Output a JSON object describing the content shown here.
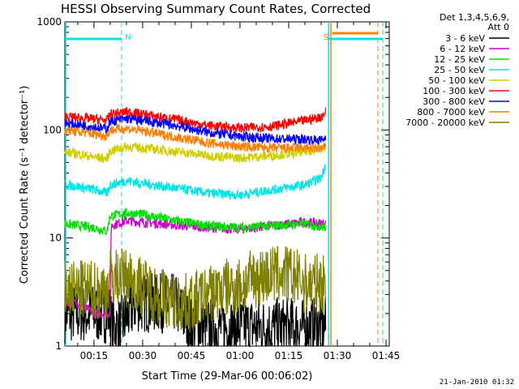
{
  "chart_data": {
    "type": "line",
    "title": "HESSI Observing Summary Count Rates, Corrected",
    "xlabel": "Start Time (29-Mar-06 00:06:02)",
    "ylabel": "Corrected Count Rate (s⁻¹ detector⁻¹)",
    "yscale": "log",
    "ylim": [
      1,
      1000
    ],
    "xlim_minutes_since_0000": [
      6.03,
      106.0
    ],
    "x_tick_labels": [
      "00:15",
      "00:30",
      "00:45",
      "01:00",
      "01:15",
      "01:30",
      "01:45"
    ],
    "x_tick_minutes": [
      15,
      30,
      45,
      60,
      75,
      90,
      105
    ],
    "y_tick_labels": [
      "1",
      "10",
      "100",
      "1000"
    ],
    "y_tick_values": [
      1,
      10,
      100,
      1000
    ],
    "legend_header": [
      "Det 1,3,4,5,6,9,",
      "Att 0"
    ],
    "legend_position": "right",
    "timestamp": "21-Jan-2010 01:32",
    "flags": [
      {
        "label": "N",
        "color": "#00e5e5",
        "start_min": 6.03,
        "end_min": 23.5
      },
      {
        "label": "S",
        "color": "#ff7f00",
        "start_min": 88.0,
        "end_min": 104.0
      }
    ],
    "night_bar": {
      "color": "#00e5e5",
      "segments": [
        [
          6.03,
          23.5
        ],
        [
          87.5,
          104.0
        ]
      ]
    },
    "series": [
      {
        "name": "3 - 6 keV",
        "color": "#000000",
        "times": [
          6,
          20,
          20.5,
          23,
          28,
          40,
          45,
          55,
          60,
          65,
          70,
          75,
          80,
          86.5
        ],
        "values": [
          2,
          2,
          1.5,
          1.5,
          2.5,
          2.5,
          1.5,
          1.5,
          1.5,
          1.5,
          1.5,
          1.5,
          1.5,
          1.5
        ]
      },
      {
        "name": "6 - 12 keV",
        "color": "#d000d0",
        "times": [
          6,
          10,
          15,
          20,
          20.3,
          25,
          30,
          40,
          50,
          60,
          70,
          80,
          86.5
        ],
        "values": [
          2.5,
          2.5,
          2.0,
          2.0,
          13.0,
          14.5,
          14.0,
          13.2,
          12.5,
          12.0,
          13.0,
          14.0,
          13.5
        ]
      },
      {
        "name": "12 - 25 keV",
        "color": "#00e000",
        "times": [
          6,
          10,
          15,
          19,
          20,
          25,
          30,
          40,
          50,
          60,
          70,
          80,
          86.5
        ],
        "values": [
          13.5,
          13.0,
          12.5,
          11.5,
          16.0,
          17.0,
          16.5,
          14.5,
          13.0,
          12.5,
          13.0,
          13.5,
          12.5
        ]
      },
      {
        "name": "25 - 50 keV",
        "color": "#00e5e5",
        "times": [
          6,
          10,
          15,
          19,
          20,
          25,
          30,
          40,
          50,
          60,
          70,
          80,
          85,
          86.5
        ],
        "values": [
          31,
          30,
          28,
          26,
          31,
          34,
          32,
          29,
          26,
          25,
          28,
          31,
          36,
          50
        ]
      },
      {
        "name": "50 - 100 keV",
        "color": "#d0d000",
        "times": [
          6,
          10,
          15,
          19,
          20,
          25,
          30,
          40,
          50,
          60,
          70,
          80,
          85,
          86.5
        ],
        "values": [
          62,
          60,
          56,
          54,
          64,
          70,
          68,
          63,
          58,
          55,
          58,
          63,
          67,
          68
        ]
      },
      {
        "name": "100 - 300 keV",
        "color": "#ff0000",
        "times": [
          6,
          10,
          15,
          19,
          20,
          25,
          30,
          40,
          50,
          60,
          70,
          80,
          85,
          86.5
        ],
        "values": [
          133,
          130,
          126,
          122,
          140,
          147,
          140,
          125,
          110,
          104,
          108,
          122,
          132,
          148
        ]
      },
      {
        "name": "300 - 800 keV",
        "color": "#0000ff",
        "times": [
          6,
          10,
          15,
          19,
          20,
          25,
          30,
          40,
          50,
          60,
          70,
          80,
          85,
          86.5
        ],
        "values": [
          115,
          112,
          107,
          102,
          120,
          127,
          122,
          110,
          95,
          87,
          83,
          82,
          80,
          85
        ]
      },
      {
        "name": "800 - 7000 keV",
        "color": "#ff7f00",
        "times": [
          6,
          10,
          15,
          19,
          20,
          25,
          30,
          40,
          50,
          60,
          70,
          80,
          85,
          86.5
        ],
        "values": [
          100,
          96,
          92,
          88,
          100,
          103,
          98,
          86,
          76,
          70,
          68,
          68,
          67,
          70
        ]
      },
      {
        "name": "7000 - 20000 keV",
        "color": "#808000",
        "times": [
          6,
          15,
          19,
          20,
          26,
          30,
          35,
          40,
          45,
          50,
          55,
          60,
          65,
          70,
          75,
          80,
          86.5
        ],
        "values": [
          3.3,
          3.3,
          3.3,
          4.3,
          4.3,
          3.5,
          3.0,
          2.5,
          2.5,
          3.0,
          3.4,
          3.6,
          4.3,
          4.6,
          4.6,
          3.8,
          3.8
        ]
      }
    ]
  }
}
